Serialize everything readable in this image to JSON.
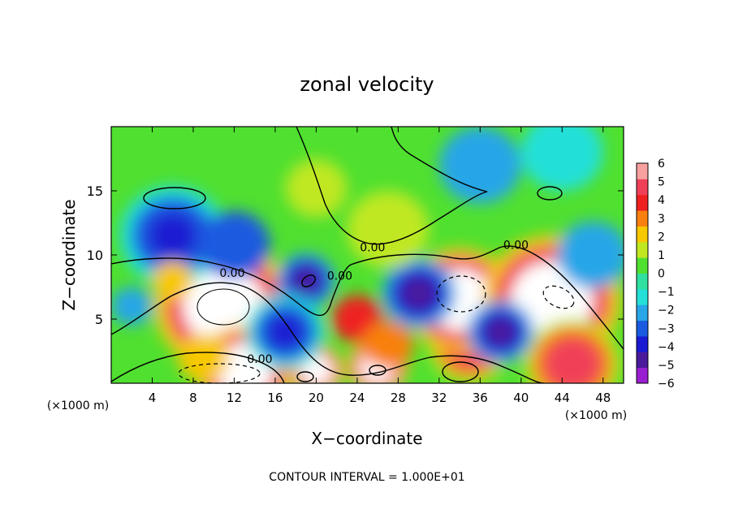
{
  "chart_data": {
    "type": "heatmap",
    "title": "zonal velocity",
    "xlabel": "X−coordinate",
    "ylabel": "Z−coordinate",
    "x_unit_left": "(×1000 m)",
    "x_unit_right": "(×1000 m)",
    "footer": "CONTOUR INTERVAL = 1.000E+01",
    "xlim": [
      0,
      50
    ],
    "ylim": [
      0,
      20
    ],
    "x_ticks": [
      4,
      8,
      12,
      16,
      20,
      24,
      28,
      32,
      36,
      40,
      44,
      48
    ],
    "x_tick_labels": [
      "4",
      "8",
      "12",
      "16",
      "20",
      "24",
      "28",
      "32",
      "36",
      "40",
      "44",
      "48"
    ],
    "y_ticks": [
      5,
      10,
      15
    ],
    "y_tick_labels": [
      "5",
      "10",
      "15"
    ],
    "colorbar": {
      "min": -6,
      "max": 6,
      "ticks": [
        "6",
        "5",
        "4",
        "3",
        "2",
        "1",
        "0",
        "−1",
        "−2",
        "−3",
        "−4",
        "−5",
        "−6"
      ],
      "colors": [
        "#9a1fd0",
        "#4a1a9a",
        "#1a1ad2",
        "#1a5ae0",
        "#28a6e8",
        "#24e0d8",
        "#30e0a0",
        "#50e030",
        "#c0e820",
        "#f8c800",
        "#f88010",
        "#ee2020",
        "#f04058",
        "#f8a0a0"
      ]
    },
    "contour_labels": [
      {
        "text": "0.00",
        "x": 25.5,
        "y": 10.6
      },
      {
        "text": "0.00",
        "x": 39.5,
        "y": 10.8
      },
      {
        "text": "0.00",
        "x": 11.8,
        "y": 8.6
      },
      {
        "text": "0.00",
        "x": 22.3,
        "y": 8.4
      },
      {
        "text": "0.00",
        "x": 14.5,
        "y": 1.9
      }
    ],
    "regions": [
      {
        "v": 6,
        "x": 11,
        "y": 6,
        "r": 5
      },
      {
        "v": 6,
        "x": 13,
        "y": 1,
        "r": 3.5
      },
      {
        "v": 6,
        "x": 20,
        "y": 1,
        "r": 2
      },
      {
        "v": 6,
        "x": 26,
        "y": 1.3,
        "r": 2.2
      },
      {
        "v": 5,
        "x": 35,
        "y": 3,
        "r": 3
      },
      {
        "v": 6,
        "x": 34,
        "y": 6.5,
        "r": 4
      },
      {
        "v": 6,
        "x": 43,
        "y": 6.5,
        "r": 5
      },
      {
        "v": 5,
        "x": 45,
        "y": 1.5,
        "r": 3.5
      },
      {
        "v": 4,
        "x": 24,
        "y": 5,
        "r": 2.5
      },
      {
        "v": 3,
        "x": 27,
        "y": 3,
        "r": 2.5
      },
      {
        "v": -5,
        "x": 19,
        "y": 8,
        "r": 2.2
      },
      {
        "v": -5,
        "x": 30,
        "y": 7,
        "r": 2.8
      },
      {
        "v": -4,
        "x": 17,
        "y": 4,
        "r": 3
      },
      {
        "v": -5,
        "x": 38,
        "y": 4,
        "r": 2.5
      },
      {
        "v": -4,
        "x": 6,
        "y": 11.5,
        "r": 4
      },
      {
        "v": -3,
        "x": 12,
        "y": 10.8,
        "r": 3.5
      },
      {
        "v": -2,
        "x": 47,
        "y": 10,
        "r": 3.5
      },
      {
        "v": -2,
        "x": 36,
        "y": 17,
        "r": 4
      },
      {
        "v": -1.5,
        "x": 44,
        "y": 18,
        "r": 4
      },
      {
        "v": 1.5,
        "x": 20,
        "y": 15.2,
        "r": 3
      },
      {
        "v": 2.5,
        "x": 6,
        "y": 8,
        "r": 2
      },
      {
        "v": 2,
        "x": 9,
        "y": 2,
        "r": 2.5
      },
      {
        "v": 1,
        "x": 27,
        "y": 12,
        "r": 4
      },
      {
        "v": -2.5,
        "x": 2,
        "y": 6,
        "r": 2
      }
    ]
  }
}
